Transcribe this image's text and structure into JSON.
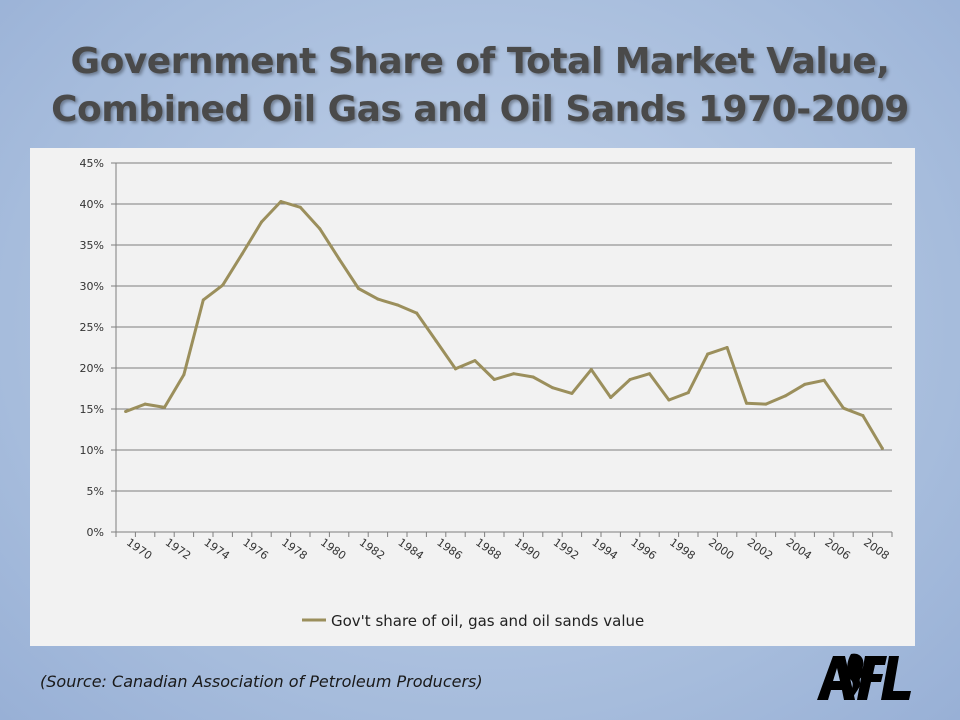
{
  "slide": {
    "title_line1": "Government Share of Total Market Value,",
    "title_line2": "Combined Oil Gas and Oil Sands 1970-2009",
    "source": "(Source: Canadian Association of Petroleum Producers)",
    "logo_text": "AFL"
  },
  "colors": {
    "line": "#9b8f5c",
    "grid": "#7f7f7f",
    "panel": "#f2f2f2"
  },
  "chart_data": {
    "type": "line",
    "title": "",
    "xlabel": "",
    "ylabel": "",
    "ylim": [
      0,
      0.45
    ],
    "y_ticks": [
      "0%",
      "5%",
      "10%",
      "15%",
      "20%",
      "25%",
      "30%",
      "35%",
      "40%",
      "45%"
    ],
    "x_tick_labels": [
      "1970",
      "1972",
      "1974",
      "1976",
      "1978",
      "1980",
      "1982",
      "1984",
      "1986",
      "1988",
      "1990",
      "1992",
      "1994",
      "1996",
      "1998",
      "2000",
      "2002",
      "2004",
      "2006",
      "2008"
    ],
    "grid": "horizontal",
    "legend_position": "bottom",
    "x": [
      1970,
      1971,
      1972,
      1973,
      1974,
      1975,
      1976,
      1977,
      1978,
      1979,
      1980,
      1981,
      1982,
      1983,
      1984,
      1985,
      1986,
      1987,
      1988,
      1989,
      1990,
      1991,
      1992,
      1993,
      1994,
      1995,
      1996,
      1997,
      1998,
      1999,
      2000,
      2001,
      2002,
      2003,
      2004,
      2005,
      2006,
      2007,
      2008,
      2009
    ],
    "series": [
      {
        "name": "Gov't share of oil, gas and oil sands value",
        "values": [
          0.147,
          0.156,
          0.152,
          0.192,
          0.283,
          0.301,
          0.339,
          0.378,
          0.403,
          0.396,
          0.37,
          0.333,
          0.297,
          0.284,
          0.277,
          0.267,
          0.233,
          0.199,
          0.209,
          0.186,
          0.193,
          0.189,
          0.176,
          0.169,
          0.198,
          0.164,
          0.186,
          0.193,
          0.161,
          0.17,
          0.217,
          0.225,
          0.157,
          0.156,
          0.166,
          0.18,
          0.185,
          0.151,
          0.142,
          0.102
        ]
      }
    ]
  }
}
